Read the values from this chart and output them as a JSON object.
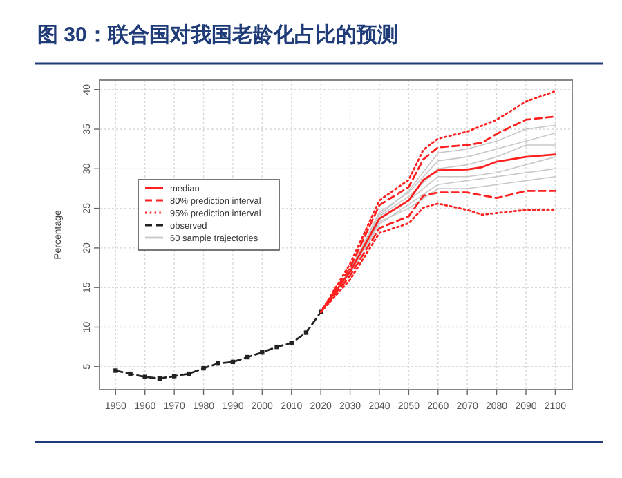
{
  "chart_data": {
    "type": "line",
    "title": "图 30：联合国对我国老龄化占比的预测",
    "ylabel": "Percentage",
    "xlim": [
      1944.5,
      2105.8
    ],
    "ylim": [
      2.1,
      41.2
    ],
    "xticks": [
      1950,
      1960,
      1970,
      1980,
      1990,
      2000,
      2010,
      2020,
      2030,
      2040,
      2050,
      2060,
      2070,
      2080,
      2090,
      2100
    ],
    "yticks": [
      5,
      10,
      15,
      20,
      25,
      30,
      35,
      40
    ],
    "grid": true,
    "legend": "top left",
    "series": [
      {
        "name": "median",
        "color": "#ff2020",
        "line_style": "solid",
        "x": [
          2020,
          2025,
          2030,
          2040,
          2050,
          2055,
          2060,
          2070,
          2075,
          2080,
          2090,
          2100
        ],
        "values": [
          11.9,
          14.5,
          17.0,
          23.7,
          26.0,
          28.6,
          29.8,
          29.9,
          30.2,
          30.9,
          31.5,
          31.8
        ]
      },
      {
        "name": "80% prediction interval",
        "color": "#ff2020",
        "line_style": "dashed",
        "x": [
          2020,
          2030,
          2040,
          2050,
          2055,
          2060,
          2070,
          2075,
          2080,
          2090,
          2100
        ],
        "values": [
          11.9,
          17.5,
          25.4,
          27.7,
          31.2,
          32.7,
          33.0,
          33.3,
          34.4,
          36.2,
          36.6
        ]
      },
      {
        "color": "#ff2020",
        "line_style": "dashed",
        "x": [
          2020,
          2030,
          2040,
          2050,
          2055,
          2060,
          2070,
          2080,
          2090,
          2100
        ],
        "values": [
          11.9,
          16.5,
          22.5,
          24.0,
          26.6,
          27.0,
          27.0,
          26.3,
          27.2,
          27.2
        ]
      },
      {
        "name": "95% prediction interval",
        "color": "#ff2020",
        "line_style": "dotted",
        "x": [
          2020,
          2030,
          2040,
          2050,
          2055,
          2060,
          2070,
          2080,
          2090,
          2100
        ],
        "values": [
          11.9,
          18.0,
          26.0,
          28.6,
          32.4,
          33.8,
          34.7,
          36.2,
          38.5,
          39.8
        ]
      },
      {
        "color": "#ff2020",
        "line_style": "dotted",
        "x": [
          2020,
          2030,
          2040,
          2050,
          2055,
          2060,
          2070,
          2075,
          2080,
          2090,
          2100
        ],
        "values": [
          11.9,
          16.0,
          21.9,
          23.1,
          25.1,
          25.6,
          24.8,
          24.2,
          24.4,
          24.8,
          24.8
        ]
      },
      {
        "name": "observed",
        "color": "#222222",
        "line_style": "dashed",
        "marker": "square",
        "x": [
          1950,
          1955,
          1960,
          1965,
          1970,
          1975,
          1980,
          1985,
          1990,
          1995,
          2000,
          2005,
          2010,
          2015,
          2020
        ],
        "values": [
          4.5,
          4.1,
          3.7,
          3.5,
          3.8,
          4.1,
          4.8,
          5.4,
          5.6,
          6.2,
          6.8,
          7.5,
          8.0,
          9.3,
          11.9
        ]
      },
      {
        "name": "60 sample trajectories",
        "color": "#c8c8c8",
        "line_style": "solid",
        "x": [
          2020,
          2030,
          2040,
          2050,
          2060,
          2070,
          2080,
          2090,
          2100
        ],
        "values": [
          12,
          17.2,
          24.5,
          27,
          31,
          31.5,
          32.5,
          33.5,
          34.5
        ]
      },
      {
        "color": "#c8c8c8",
        "line_style": "solid",
        "x": [
          2020,
          2030,
          2040,
          2050,
          2060,
          2070,
          2080,
          2090,
          2100
        ],
        "values": [
          12,
          16.8,
          23,
          25.5,
          28,
          28.5,
          29,
          29.5,
          30
        ]
      },
      {
        "color": "#c8c8c8",
        "line_style": "solid",
        "x": [
          2020,
          2030,
          2040,
          2050,
          2060,
          2070,
          2080,
          2090,
          2100
        ],
        "values": [
          12,
          17,
          24,
          26.5,
          30,
          30.5,
          31.5,
          33,
          33
        ]
      },
      {
        "color": "#c8c8c8",
        "line_style": "solid",
        "x": [
          2020,
          2030,
          2040,
          2050,
          2060,
          2070,
          2080,
          2090,
          2100
        ],
        "values": [
          12,
          16.9,
          23.3,
          25,
          27.5,
          27.5,
          28,
          28.5,
          29
        ]
      },
      {
        "color": "#c8c8c8",
        "line_style": "solid",
        "x": [
          2020,
          2030,
          2040,
          2050,
          2060,
          2070,
          2080,
          2090,
          2100
        ],
        "values": [
          12,
          17.1,
          24.2,
          27.2,
          32,
          32.5,
          33.5,
          35,
          35.5
        ]
      },
      {
        "color": "#c8c8c8",
        "line_style": "solid",
        "x": [
          2020,
          2030,
          2040,
          2050,
          2060,
          2070,
          2080,
          2090,
          2100
        ],
        "values": [
          12,
          16.9,
          23.6,
          26,
          29,
          29,
          29.5,
          30.5,
          31.5
        ]
      }
    ]
  }
}
